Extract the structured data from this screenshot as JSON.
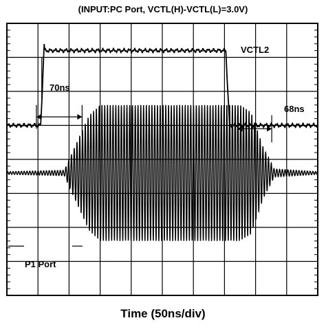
{
  "chart_data": {
    "type": "line",
    "title": "(INPUT:PC Port, VCTL(H)-VCTL(L)=3.0V)",
    "xlabel": "Time (50ns/div)",
    "ylabel": "",
    "grid": true,
    "divisions": {
      "x": 10,
      "y": 8
    },
    "series": [
      {
        "name": "VCTL2",
        "kind": "control step",
        "low_level_div": 5.0,
        "high_level_div": 7.2,
        "rise_start_time_div": 1.1,
        "fall_start_time_div": 7.05
      },
      {
        "name": "P1 Port",
        "kind": "RF burst",
        "center_level_div": 3.6,
        "peak_amplitude_div": 2.0,
        "envelope_points_div": [
          [
            0.0,
            0.04
          ],
          [
            1.85,
            0.08
          ],
          [
            2.15,
            0.7
          ],
          [
            2.65,
            1.7
          ],
          [
            3.0,
            2.0
          ],
          [
            7.5,
            2.0
          ],
          [
            7.85,
            1.8
          ],
          [
            8.25,
            0.75
          ],
          [
            8.6,
            0.12
          ],
          [
            10.0,
            0.04
          ]
        ]
      }
    ],
    "annotations": [
      {
        "text": "VCTL2"
      },
      {
        "text": "70ns"
      },
      {
        "text": "68ns"
      },
      {
        "text": "P1 Port"
      }
    ]
  }
}
